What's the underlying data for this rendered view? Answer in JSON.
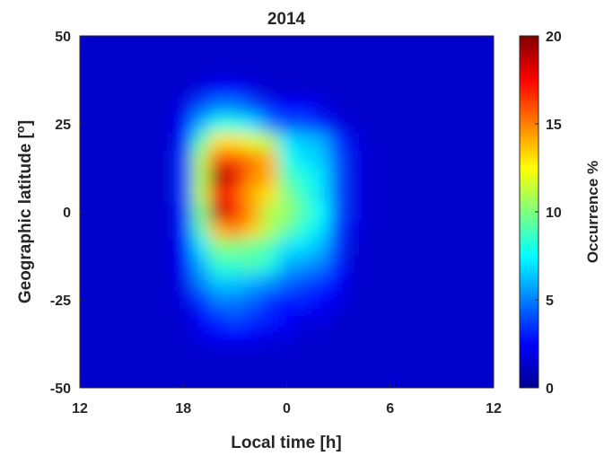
{
  "chart_data": {
    "type": "heatmap",
    "title": "2014",
    "xlabel": "Local time [h]",
    "ylabel": "Geographic latitude [",
    "ylabel_degree": "o",
    "ylabel_close": "]",
    "x_ticks": [
      "12",
      "18",
      "0",
      "6",
      "12"
    ],
    "x_tick_hours": [
      12,
      18,
      24,
      30,
      36
    ],
    "xlim_hours": [
      12,
      36
    ],
    "y_ticks": [
      "50",
      "25",
      "0",
      "-25",
      "-50"
    ],
    "y_tick_values": [
      50,
      25,
      0,
      -25,
      -50
    ],
    "ylim": [
      -50,
      50
    ],
    "colorbar": {
      "label": "Occurrence %",
      "ticks": [
        "20",
        "15",
        "10",
        "5",
        "0"
      ],
      "tick_values": [
        20,
        15,
        10,
        5,
        0
      ],
      "range": [
        0,
        20
      ],
      "colormap": "jet"
    },
    "background_level": 1.5,
    "grid_hours": [
      12,
      13,
      14,
      15,
      16,
      17,
      18,
      19,
      20,
      21,
      22,
      23,
      24,
      25,
      26,
      27,
      28,
      29,
      30,
      31,
      32,
      33,
      34,
      35,
      36
    ],
    "grid_latitudes": [
      50,
      45,
      40,
      35,
      30,
      25,
      20,
      15,
      10,
      5,
      0,
      -5,
      -10,
      -15,
      -20,
      -25,
      -30,
      -35,
      -40,
      -45,
      -50
    ],
    "values": [
      [
        1.5,
        1.5,
        1.5,
        1.5,
        1.5,
        1.5,
        1.5,
        1.5,
        1.5,
        1.5,
        1.5,
        1.5,
        1.5,
        1.5,
        1.5,
        1.5,
        1.5,
        1.5,
        1.5,
        1.5,
        1.5,
        1.5,
        1.5,
        1.5,
        1.5
      ],
      [
        1.5,
        1.5,
        1.5,
        1.5,
        1.5,
        1.5,
        1.5,
        1.5,
        1.5,
        1.5,
        1.5,
        1.5,
        1.5,
        1.5,
        1.5,
        1.5,
        1.5,
        1.5,
        1.5,
        1.5,
        1.5,
        1.5,
        1.5,
        1.5,
        1.5
      ],
      [
        1.5,
        1.5,
        1.5,
        1.5,
        1.5,
        1.5,
        1.5,
        1.5,
        1.5,
        1.5,
        1.5,
        1.5,
        1.5,
        1.5,
        1.5,
        1.5,
        1.5,
        1.5,
        1.5,
        1.5,
        1.5,
        1.5,
        1.5,
        1.5,
        1.5
      ],
      [
        1.5,
        1.5,
        1.5,
        1.5,
        1.5,
        1.5,
        1.5,
        2.0,
        2.5,
        2.5,
        2.0,
        1.5,
        1.5,
        1.5,
        1.5,
        1.5,
        1.5,
        1.5,
        1.5,
        1.5,
        1.5,
        1.5,
        1.5,
        1.5,
        1.5
      ],
      [
        1.5,
        1.5,
        1.5,
        1.5,
        1.5,
        1.5,
        2.0,
        4.0,
        5.0,
        5.0,
        4.0,
        3.0,
        2.5,
        2.5,
        2.0,
        1.5,
        1.5,
        1.5,
        1.5,
        1.5,
        1.5,
        1.5,
        1.5,
        1.5,
        1.5
      ],
      [
        1.5,
        1.5,
        1.5,
        1.5,
        1.5,
        1.5,
        2.5,
        6.0,
        8.0,
        8.0,
        7.0,
        5.0,
        4.0,
        4.0,
        3.0,
        2.0,
        1.5,
        1.5,
        1.5,
        1.5,
        1.5,
        1.5,
        1.5,
        1.5,
        1.5
      ],
      [
        1.5,
        1.5,
        1.5,
        1.5,
        1.5,
        1.5,
        3.0,
        9.0,
        13.0,
        13.0,
        12.0,
        11.0,
        7.0,
        6.5,
        6.0,
        3.5,
        2.0,
        1.5,
        1.5,
        1.5,
        1.5,
        1.5,
        1.5,
        1.5,
        1.5
      ],
      [
        1.5,
        1.5,
        1.5,
        1.5,
        1.5,
        1.5,
        3.5,
        11.0,
        16.0,
        16.0,
        15.0,
        14.0,
        8.0,
        7.0,
        6.5,
        4.0,
        2.0,
        1.5,
        1.5,
        1.5,
        1.5,
        1.5,
        1.5,
        1.5,
        1.5
      ],
      [
        1.5,
        1.5,
        1.5,
        1.5,
        1.5,
        1.5,
        3.5,
        11.0,
        19.5,
        18.0,
        15.0,
        14.0,
        9.0,
        8.0,
        7.0,
        4.0,
        2.0,
        1.5,
        1.5,
        1.5,
        1.5,
        1.5,
        1.5,
        1.5,
        1.5
      ],
      [
        1.5,
        1.5,
        1.5,
        1.5,
        1.5,
        1.5,
        3.5,
        11.0,
        17.5,
        16.0,
        14.0,
        13.0,
        10.0,
        8.5,
        7.0,
        4.0,
        2.0,
        1.5,
        1.5,
        1.5,
        1.5,
        1.5,
        1.5,
        1.5,
        1.5
      ],
      [
        1.5,
        1.5,
        1.5,
        1.5,
        1.5,
        1.5,
        3.0,
        10.0,
        19.0,
        17.0,
        14.5,
        11.0,
        10.5,
        9.0,
        7.5,
        4.0,
        2.0,
        1.5,
        1.5,
        1.5,
        1.5,
        1.5,
        1.5,
        1.5,
        1.5
      ],
      [
        1.5,
        1.5,
        1.5,
        1.5,
        1.5,
        1.5,
        3.0,
        9.0,
        14.0,
        15.0,
        13.5,
        11.0,
        9.5,
        8.0,
        7.0,
        3.5,
        2.0,
        1.5,
        1.5,
        1.5,
        1.5,
        1.5,
        1.5,
        1.5,
        1.5
      ],
      [
        1.5,
        1.5,
        1.5,
        1.5,
        1.5,
        1.5,
        2.5,
        7.0,
        10.0,
        10.0,
        9.5,
        9.0,
        7.0,
        7.0,
        6.0,
        3.5,
        1.5,
        1.5,
        1.5,
        1.5,
        1.5,
        1.5,
        1.5,
        1.5,
        1.5
      ],
      [
        1.5,
        1.5,
        1.5,
        1.5,
        1.5,
        1.5,
        2.5,
        6.0,
        8.5,
        8.5,
        9.0,
        8.0,
        6.0,
        5.5,
        5.0,
        3.0,
        1.5,
        1.5,
        1.5,
        1.5,
        1.5,
        1.5,
        1.5,
        1.5,
        1.5
      ],
      [
        1.5,
        1.5,
        1.5,
        1.5,
        1.5,
        1.5,
        2.0,
        5.0,
        6.5,
        6.5,
        6.0,
        5.5,
        4.5,
        4.0,
        3.5,
        2.5,
        1.5,
        1.5,
        1.5,
        1.5,
        1.5,
        1.5,
        1.5,
        1.5,
        1.5
      ],
      [
        1.5,
        1.5,
        1.5,
        1.5,
        1.5,
        1.5,
        2.0,
        3.5,
        5.0,
        5.0,
        4.5,
        3.5,
        3.0,
        3.0,
        2.5,
        2.0,
        1.5,
        1.5,
        1.5,
        1.5,
        1.5,
        1.5,
        1.5,
        1.5,
        1.5
      ],
      [
        1.5,
        1.5,
        1.5,
        1.5,
        1.5,
        1.5,
        1.5,
        2.5,
        3.5,
        4.0,
        3.5,
        3.0,
        2.5,
        2.0,
        2.0,
        1.5,
        1.5,
        1.5,
        1.5,
        1.5,
        1.5,
        1.5,
        1.5,
        1.5,
        1.5
      ],
      [
        1.5,
        1.5,
        1.5,
        1.5,
        1.5,
        1.5,
        1.5,
        2.0,
        2.5,
        2.5,
        2.5,
        2.0,
        2.0,
        1.5,
        1.5,
        1.5,
        1.5,
        1.5,
        1.5,
        1.5,
        1.5,
        1.5,
        1.5,
        1.5,
        1.5
      ],
      [
        1.5,
        1.5,
        1.5,
        1.5,
        1.5,
        1.5,
        1.5,
        1.5,
        1.5,
        1.5,
        1.5,
        1.5,
        1.5,
        1.5,
        1.5,
        1.5,
        1.5,
        1.5,
        1.5,
        1.5,
        1.5,
        1.5,
        1.5,
        1.5,
        1.5
      ],
      [
        1.5,
        1.5,
        1.5,
        1.5,
        1.5,
        1.5,
        1.5,
        1.5,
        1.5,
        1.5,
        1.5,
        1.5,
        1.5,
        1.5,
        1.5,
        1.5,
        1.5,
        1.5,
        1.5,
        1.5,
        1.5,
        1.5,
        1.5,
        1.5,
        1.5
      ],
      [
        1.5,
        1.5,
        1.5,
        1.5,
        1.5,
        1.5,
        1.5,
        1.5,
        1.5,
        1.5,
        1.5,
        1.5,
        1.5,
        1.5,
        1.5,
        1.5,
        1.5,
        1.5,
        1.5,
        1.5,
        1.5,
        1.5,
        1.5,
        1.5,
        1.5
      ]
    ]
  }
}
